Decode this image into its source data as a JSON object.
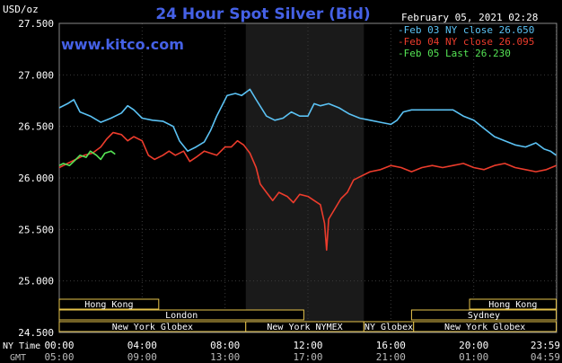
{
  "chart_data": {
    "type": "line",
    "title": "24 Hour Spot Silver (Bid)",
    "ylabel": "USD/oz",
    "watermark": "www.kitco.com",
    "datetime": "February 05, 2021 02:28",
    "ylim": [
      24.5,
      27.5
    ],
    "xlim": [
      0,
      24
    ],
    "y_ticks": [
      "27.500",
      "27.000",
      "26.500",
      "26.000",
      "25.500",
      "25.000",
      "24.500"
    ],
    "y_tick_values": [
      27.5,
      27.0,
      26.5,
      26.0,
      25.5,
      25.0,
      24.5
    ],
    "x_ticks_ny": [
      "00:00",
      "04:00",
      "08:00",
      "12:00",
      "16:00",
      "20:00",
      "23:59"
    ],
    "x_ticks_gmt": [
      "05:00",
      "09:00",
      "13:00",
      "17:00",
      "21:00",
      "01:00",
      "04:59"
    ],
    "x_tick_hours": [
      0,
      4,
      8,
      12,
      16,
      20,
      23.98
    ],
    "x_row_labels": {
      "ny": "NY Time",
      "gmt": "GMT"
    },
    "highlight_hours": [
      9,
      14.7
    ],
    "legend": [
      {
        "label": "Feb 03 NY close 26.650",
        "color": "#5bc2f4"
      },
      {
        "label": "Feb 04 NY close 26.095",
        "color": "#ec3c2c"
      },
      {
        "label": "Feb 05 Last 26.230",
        "color": "#55e455"
      }
    ],
    "series": [
      {
        "name": "Feb 03 NY close 26.650",
        "color": "#5bc2f4",
        "points": [
          [
            0,
            26.68
          ],
          [
            0.4,
            26.72
          ],
          [
            0.7,
            26.76
          ],
          [
            1.0,
            26.64
          ],
          [
            1.5,
            26.6
          ],
          [
            2,
            26.54
          ],
          [
            2.5,
            26.58
          ],
          [
            3,
            26.63
          ],
          [
            3.3,
            26.7
          ],
          [
            3.6,
            26.66
          ],
          [
            4,
            26.58
          ],
          [
            4.5,
            26.56
          ],
          [
            5,
            26.55
          ],
          [
            5.5,
            26.5
          ],
          [
            5.8,
            26.36
          ],
          [
            6.2,
            26.26
          ],
          [
            6.6,
            26.3
          ],
          [
            7,
            26.35
          ],
          [
            7.3,
            26.46
          ],
          [
            7.6,
            26.6
          ],
          [
            7.9,
            26.72
          ],
          [
            8.1,
            26.8
          ],
          [
            8.5,
            26.82
          ],
          [
            8.8,
            26.8
          ],
          [
            9.2,
            26.86
          ],
          [
            9.5,
            26.76
          ],
          [
            10,
            26.6
          ],
          [
            10.4,
            26.56
          ],
          [
            10.8,
            26.58
          ],
          [
            11.2,
            26.64
          ],
          [
            11.6,
            26.6
          ],
          [
            12,
            26.6
          ],
          [
            12.3,
            26.72
          ],
          [
            12.6,
            26.7
          ],
          [
            13,
            26.72
          ],
          [
            13.5,
            26.68
          ],
          [
            14,
            26.62
          ],
          [
            14.5,
            26.58
          ],
          [
            15,
            26.56
          ],
          [
            15.5,
            26.54
          ],
          [
            16,
            26.52
          ],
          [
            16.3,
            26.56
          ],
          [
            16.6,
            26.64
          ],
          [
            17,
            26.66
          ],
          [
            17.5,
            26.66
          ],
          [
            18,
            26.66
          ],
          [
            18.5,
            26.66
          ],
          [
            19,
            26.66
          ],
          [
            19.5,
            26.6
          ],
          [
            20,
            26.56
          ],
          [
            20.5,
            26.48
          ],
          [
            21,
            26.4
          ],
          [
            21.5,
            26.36
          ],
          [
            22,
            26.32
          ],
          [
            22.5,
            26.3
          ],
          [
            23,
            26.34
          ],
          [
            23.4,
            26.28
          ],
          [
            23.7,
            26.26
          ],
          [
            23.98,
            26.22
          ]
        ]
      },
      {
        "name": "Feb 04 NY close 26.095",
        "color": "#ec3c2c",
        "points": [
          [
            0,
            26.1
          ],
          [
            0.4,
            26.14
          ],
          [
            0.8,
            26.18
          ],
          [
            1.2,
            26.22
          ],
          [
            1.6,
            26.24
          ],
          [
            2,
            26.3
          ],
          [
            2.3,
            26.38
          ],
          [
            2.6,
            26.44
          ],
          [
            3,
            26.42
          ],
          [
            3.3,
            26.36
          ],
          [
            3.6,
            26.4
          ],
          [
            4,
            26.36
          ],
          [
            4.3,
            26.22
          ],
          [
            4.6,
            26.18
          ],
          [
            5,
            26.22
          ],
          [
            5.3,
            26.26
          ],
          [
            5.6,
            26.22
          ],
          [
            6,
            26.26
          ],
          [
            6.3,
            26.16
          ],
          [
            6.6,
            26.2
          ],
          [
            7,
            26.26
          ],
          [
            7.3,
            26.24
          ],
          [
            7.6,
            26.22
          ],
          [
            8,
            26.3
          ],
          [
            8.3,
            26.3
          ],
          [
            8.6,
            26.36
          ],
          [
            8.9,
            26.32
          ],
          [
            9.2,
            26.24
          ],
          [
            9.5,
            26.1
          ],
          [
            9.7,
            25.94
          ],
          [
            10,
            25.86
          ],
          [
            10.3,
            25.78
          ],
          [
            10.6,
            25.86
          ],
          [
            11,
            25.82
          ],
          [
            11.3,
            25.76
          ],
          [
            11.6,
            25.84
          ],
          [
            12,
            25.82
          ],
          [
            12.3,
            25.78
          ],
          [
            12.6,
            25.74
          ],
          [
            12.8,
            25.56
          ],
          [
            12.9,
            25.3
          ],
          [
            13.0,
            25.6
          ],
          [
            13.3,
            25.7
          ],
          [
            13.6,
            25.8
          ],
          [
            13.9,
            25.86
          ],
          [
            14.2,
            25.98
          ],
          [
            14.6,
            26.02
          ],
          [
            15,
            26.06
          ],
          [
            15.5,
            26.08
          ],
          [
            16,
            26.12
          ],
          [
            16.5,
            26.1
          ],
          [
            17,
            26.06
          ],
          [
            17.5,
            26.1
          ],
          [
            18,
            26.12
          ],
          [
            18.5,
            26.1
          ],
          [
            19,
            26.12
          ],
          [
            19.5,
            26.14
          ],
          [
            20,
            26.1
          ],
          [
            20.5,
            26.08
          ],
          [
            21,
            26.12
          ],
          [
            21.5,
            26.14
          ],
          [
            22,
            26.1
          ],
          [
            22.5,
            26.08
          ],
          [
            23,
            26.06
          ],
          [
            23.5,
            26.08
          ],
          [
            23.98,
            26.12
          ]
        ]
      },
      {
        "name": "Feb 05 Last 26.230",
        "color": "#55e455",
        "points": [
          [
            0,
            26.12
          ],
          [
            0.2,
            26.14
          ],
          [
            0.5,
            26.12
          ],
          [
            0.8,
            26.18
          ],
          [
            1.0,
            26.22
          ],
          [
            1.3,
            26.2
          ],
          [
            1.5,
            26.26
          ],
          [
            1.8,
            26.22
          ],
          [
            2.0,
            26.18
          ],
          [
            2.2,
            26.24
          ],
          [
            2.5,
            26.26
          ],
          [
            2.7,
            26.23
          ]
        ]
      }
    ]
  },
  "sessions": {
    "rows": [
      [
        {
          "label": "Hong Kong",
          "start": 0,
          "end": 4.8
        },
        {
          "label": "Hong Kong",
          "start": 19.8,
          "end": 23.98
        }
      ],
      [
        {
          "label": "London",
          "start": 0,
          "end": 11.8
        }
      ],
      [
        {
          "label": "Sydney",
          "start": 17,
          "end": 23.98
        }
      ],
      [
        {
          "label": "New York Globex",
          "start": 0,
          "end": 9
        },
        {
          "label": "New York NYMEX",
          "start": 9,
          "end": 14.7
        },
        {
          "label": "NY Globex",
          "start": 14.7,
          "end": 17.1
        },
        {
          "label": "New York Globex",
          "start": 17.1,
          "end": 23.98
        }
      ]
    ],
    "color": "#e6c34b"
  }
}
